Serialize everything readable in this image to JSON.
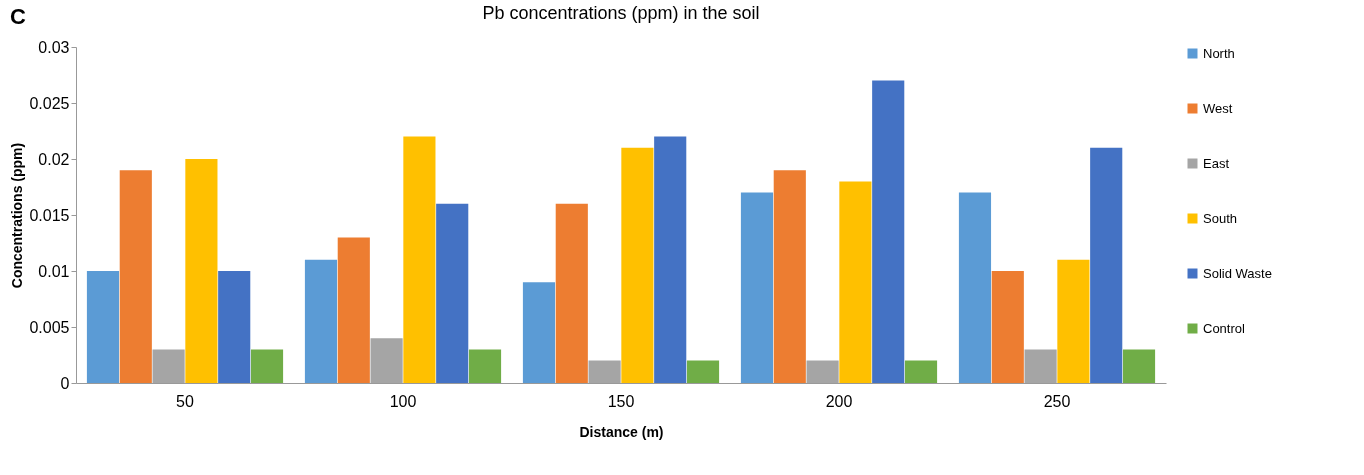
{
  "chart_data": {
    "type": "bar",
    "title": "Pb concentrations (ppm) in the soil",
    "xlabel": "Distance (m)",
    "ylabel": "Concentrations  (ppm)",
    "annotations": [
      "C"
    ],
    "categories": [
      "50",
      "100",
      "150",
      "200",
      "250"
    ],
    "series": [
      {
        "name": "North",
        "color": "#5b9bd5",
        "values": [
          0.01,
          0.011,
          0.009,
          0.017,
          0.017
        ]
      },
      {
        "name": "West",
        "color": "#ed7d31",
        "values": [
          0.019,
          0.013,
          0.016,
          0.019,
          0.01
        ]
      },
      {
        "name": "East",
        "color": "#a5a5a5",
        "values": [
          0.003,
          0.004,
          0.002,
          0.002,
          0.003
        ]
      },
      {
        "name": "South",
        "color": "#ffc000",
        "values": [
          0.02,
          0.022,
          0.021,
          0.018,
          0.011
        ]
      },
      {
        "name": "Solid Waste",
        "color": "#4472c4",
        "values": [
          0.01,
          0.016,
          0.022,
          0.027,
          0.021
        ]
      },
      {
        "name": "Control",
        "color": "#70ad47",
        "values": [
          0.003,
          0.003,
          0.002,
          0.002,
          0.003
        ]
      }
    ],
    "ylim": [
      0,
      0.03
    ],
    "yticks": [
      0,
      0.005,
      0.01,
      0.015,
      0.02,
      0.025,
      0.03
    ],
    "grid": false,
    "legend": "right"
  }
}
